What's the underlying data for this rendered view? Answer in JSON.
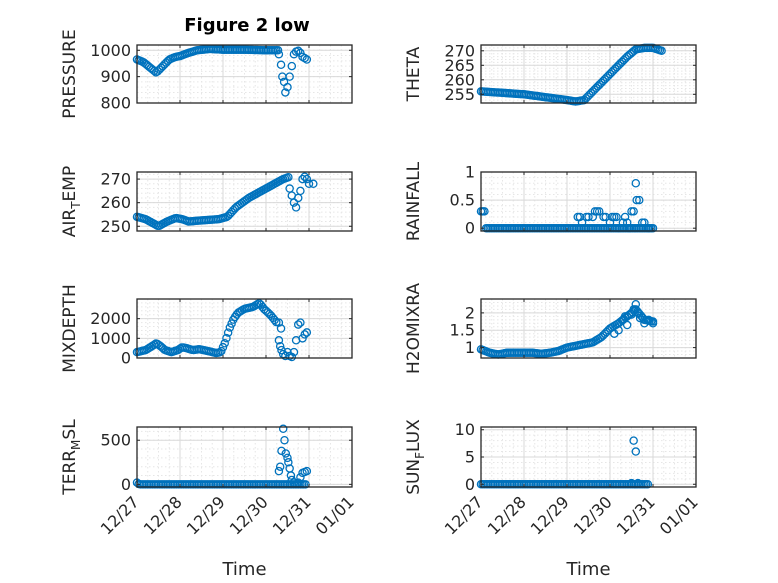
{
  "figure_title": "Figure 2 low",
  "time_ticks": [
    "12/27",
    "12/28",
    "12/29",
    "12/30",
    "12/31",
    "01/01"
  ],
  "colors": {
    "marker": "#0072BD",
    "axis": "#262626",
    "grid": "#d9d9d9"
  },
  "chart_data": [
    {
      "type": "scatter",
      "id": "pressure",
      "ylabel": "PRESSURE",
      "ylabel_sub": "",
      "xlabel": "",
      "xlim": [
        0,
        5
      ],
      "ylim": [
        800,
        1020
      ],
      "yticks": [
        800,
        900,
        1000
      ],
      "ytick_labels": [
        "800",
        "900",
        "1000"
      ],
      "ctrl": [
        [
          0.0,
          965
        ],
        [
          0.15,
          955
        ],
        [
          0.3,
          935
        ],
        [
          0.45,
          915
        ],
        [
          0.6,
          940
        ],
        [
          0.75,
          965
        ],
        [
          0.9,
          975
        ],
        [
          1.0,
          978
        ],
        [
          1.2,
          990
        ],
        [
          1.4,
          1000
        ],
        [
          1.7,
          1005
        ],
        [
          2.0,
          1002
        ],
        [
          2.5,
          1002
        ],
        [
          3.0,
          1000
        ],
        [
          3.3,
          1000
        ]
      ],
      "extra": [
        [
          3.3,
          985
        ],
        [
          3.35,
          945
        ],
        [
          3.38,
          900
        ],
        [
          3.42,
          880
        ],
        [
          3.45,
          840
        ],
        [
          3.5,
          860
        ],
        [
          3.55,
          900
        ],
        [
          3.6,
          940
        ],
        [
          3.65,
          985
        ],
        [
          3.7,
          995
        ],
        [
          3.75,
          998
        ],
        [
          3.8,
          990
        ],
        [
          3.85,
          975
        ],
        [
          3.9,
          970
        ],
        [
          3.95,
          965
        ]
      ]
    },
    {
      "type": "scatter",
      "id": "theta",
      "ylabel": "THETA",
      "ylabel_sub": "",
      "xlabel": "",
      "xlim": [
        0,
        5
      ],
      "ylim": [
        252,
        272
      ],
      "yticks": [
        255,
        260,
        265,
        270
      ],
      "ytick_labels": [
        "255",
        "260",
        "265",
        "270"
      ],
      "ctrl": [
        [
          0.0,
          256
        ],
        [
          0.5,
          255.5
        ],
        [
          1.0,
          255
        ],
        [
          1.5,
          254
        ],
        [
          2.0,
          253
        ],
        [
          2.2,
          252.5
        ],
        [
          2.4,
          253
        ],
        [
          2.6,
          256
        ],
        [
          2.8,
          259
        ],
        [
          3.0,
          262
        ],
        [
          3.2,
          265
        ],
        [
          3.4,
          268
        ],
        [
          3.6,
          270.5
        ],
        [
          3.8,
          271
        ],
        [
          4.0,
          271
        ],
        [
          4.2,
          270
        ]
      ],
      "extra": []
    },
    {
      "type": "scatter",
      "id": "air_temp",
      "ylabel": "AIR",
      "ylabel_sub": "T",
      "ylabel_tail": "EMP",
      "xlabel": "",
      "xlim": [
        0,
        5
      ],
      "ylim": [
        248,
        273
      ],
      "yticks": [
        250,
        260,
        270
      ],
      "ytick_labels": [
        "250",
        "260",
        "270"
      ],
      "ctrl": [
        [
          0.0,
          254
        ],
        [
          0.2,
          253
        ],
        [
          0.35,
          251.5
        ],
        [
          0.5,
          250
        ],
        [
          0.7,
          252
        ],
        [
          0.9,
          253.5
        ],
        [
          1.05,
          253
        ],
        [
          1.2,
          252
        ],
        [
          1.5,
          252.5
        ],
        [
          1.9,
          253
        ],
        [
          2.1,
          254
        ],
        [
          2.3,
          258
        ],
        [
          2.6,
          262
        ],
        [
          2.9,
          265
        ],
        [
          3.2,
          268
        ],
        [
          3.4,
          270
        ],
        [
          3.55,
          271
        ]
      ],
      "extra": [
        [
          3.55,
          266
        ],
        [
          3.6,
          263
        ],
        [
          3.65,
          260
        ],
        [
          3.7,
          258
        ],
        [
          3.75,
          262
        ],
        [
          3.8,
          265
        ],
        [
          3.85,
          270
        ],
        [
          3.9,
          271
        ],
        [
          3.95,
          270
        ],
        [
          4.0,
          268
        ],
        [
          4.1,
          268
        ]
      ]
    },
    {
      "type": "scatter",
      "id": "rainfall",
      "ylabel": "RAINFALL",
      "ylabel_sub": "",
      "xlabel": "",
      "xlim": [
        0,
        5
      ],
      "ylim": [
        -0.05,
        1
      ],
      "yticks": [
        0,
        0.5,
        1
      ],
      "ytick_labels": [
        "0",
        "0.5",
        "1"
      ],
      "ctrl": [
        [
          0.0,
          0.3
        ],
        [
          0.08,
          0.3
        ],
        [
          0.1,
          0
        ],
        [
          3.6,
          0
        ],
        [
          4.0,
          0
        ]
      ],
      "extra": [
        [
          2.25,
          0.2
        ],
        [
          2.3,
          0.2
        ],
        [
          2.35,
          0.1
        ],
        [
          2.45,
          0.2
        ],
        [
          2.5,
          0.2
        ],
        [
          2.6,
          0.2
        ],
        [
          2.65,
          0.3
        ],
        [
          2.7,
          0.3
        ],
        [
          2.75,
          0.3
        ],
        [
          2.85,
          0.2
        ],
        [
          2.9,
          0.2
        ],
        [
          3.0,
          0.1
        ],
        [
          3.05,
          0.2
        ],
        [
          3.1,
          0.2
        ],
        [
          3.15,
          0.2
        ],
        [
          3.3,
          0.1
        ],
        [
          3.35,
          0.2
        ],
        [
          3.4,
          0.1
        ],
        [
          3.5,
          0.3
        ],
        [
          3.55,
          0.3
        ],
        [
          3.6,
          0.8
        ],
        [
          3.62,
          0.5
        ],
        [
          3.68,
          0.5
        ],
        [
          3.75,
          0.1
        ],
        [
          3.8,
          0.1
        ],
        [
          3.9,
          0
        ],
        [
          3.2,
          0
        ],
        [
          3.45,
          0
        ]
      ]
    },
    {
      "type": "scatter",
      "id": "mixdepth",
      "ylabel": "MIXDEPTH",
      "ylabel_sub": "",
      "xlabel": "",
      "xlim": [
        0,
        5
      ],
      "ylim": [
        0,
        3000
      ],
      "yticks": [
        0,
        1000,
        2000
      ],
      "ytick_labels": [
        "0",
        "1000",
        "2000"
      ],
      "ctrl": [
        [
          0.0,
          300
        ],
        [
          0.2,
          400
        ],
        [
          0.35,
          600
        ],
        [
          0.45,
          750
        ],
        [
          0.55,
          600
        ],
        [
          0.65,
          400
        ],
        [
          0.8,
          300
        ],
        [
          0.95,
          400
        ],
        [
          1.05,
          550
        ],
        [
          1.15,
          500
        ],
        [
          1.3,
          400
        ],
        [
          1.45,
          450
        ],
        [
          1.55,
          400
        ],
        [
          1.65,
          350
        ],
        [
          1.75,
          300
        ],
        [
          1.85,
          250
        ],
        [
          1.95,
          300
        ],
        [
          2.05,
          800
        ],
        [
          2.15,
          1500
        ],
        [
          2.25,
          2000
        ],
        [
          2.35,
          2300
        ],
        [
          2.5,
          2500
        ],
        [
          2.7,
          2600
        ],
        [
          2.85,
          2800
        ],
        [
          2.95,
          2500
        ],
        [
          3.1,
          2200
        ],
        [
          3.25,
          1800
        ]
      ],
      "extra": [
        [
          3.3,
          900
        ],
        [
          3.33,
          600
        ],
        [
          3.36,
          400
        ],
        [
          3.4,
          200
        ],
        [
          3.45,
          100
        ],
        [
          3.5,
          300
        ],
        [
          3.55,
          100
        ],
        [
          3.6,
          50
        ],
        [
          3.65,
          300
        ],
        [
          3.3,
          1800
        ],
        [
          3.35,
          1500
        ],
        [
          3.7,
          900
        ],
        [
          3.75,
          1700
        ],
        [
          3.8,
          1800
        ],
        [
          3.85,
          1000
        ],
        [
          3.9,
          1200
        ],
        [
          3.95,
          1300
        ]
      ]
    },
    {
      "type": "scatter",
      "id": "h2omixra",
      "ylabel": "H2OMIXRA",
      "ylabel_sub": "",
      "xlabel": "",
      "xlim": [
        0,
        5
      ],
      "ylim": [
        0.7,
        2.4
      ],
      "yticks": [
        1,
        1.5,
        2
      ],
      "ytick_labels": [
        "1",
        "1.5",
        "2"
      ],
      "ctrl": [
        [
          0.0,
          0.95
        ],
        [
          0.2,
          0.85
        ],
        [
          0.4,
          0.8
        ],
        [
          0.6,
          0.85
        ],
        [
          0.8,
          0.85
        ],
        [
          1.0,
          0.85
        ],
        [
          1.2,
          0.85
        ],
        [
          1.4,
          0.82
        ],
        [
          1.6,
          0.85
        ],
        [
          1.8,
          0.9
        ],
        [
          2.0,
          1.0
        ],
        [
          2.2,
          1.05
        ],
        [
          2.4,
          1.1
        ],
        [
          2.6,
          1.15
        ],
        [
          2.8,
          1.3
        ],
        [
          3.0,
          1.55
        ],
        [
          3.2,
          1.7
        ],
        [
          3.4,
          1.9
        ],
        [
          3.6,
          2.1
        ],
        [
          3.8,
          1.8
        ],
        [
          4.0,
          1.75
        ]
      ],
      "extra": [
        [
          3.1,
          1.4
        ],
        [
          3.2,
          1.5
        ],
        [
          3.3,
          1.8
        ],
        [
          3.35,
          1.9
        ],
        [
          3.4,
          1.65
        ],
        [
          3.5,
          1.95
        ],
        [
          3.55,
          2.1
        ],
        [
          3.6,
          2.25
        ],
        [
          3.65,
          2.0
        ],
        [
          3.7,
          1.85
        ],
        [
          3.8,
          1.7
        ],
        [
          3.9,
          1.8
        ],
        [
          4.0,
          1.7
        ]
      ]
    },
    {
      "type": "scatter",
      "id": "terr_msl",
      "ylabel": "TERR",
      "ylabel_sub": "M",
      "ylabel_tail": "SL",
      "xlabel": "Time",
      "xlim": [
        0,
        5
      ],
      "ylim": [
        -30,
        650
      ],
      "yticks": [
        0,
        500
      ],
      "ytick_labels": [
        "0",
        "500"
      ],
      "ctrl": [
        [
          0.0,
          20
        ],
        [
          0.05,
          0
        ],
        [
          3.35,
          0
        ],
        [
          3.95,
          0
        ]
      ],
      "extra": [
        [
          3.3,
          150
        ],
        [
          3.33,
          200
        ],
        [
          3.36,
          380
        ],
        [
          3.4,
          630
        ],
        [
          3.43,
          500
        ],
        [
          3.46,
          350
        ],
        [
          3.5,
          300
        ],
        [
          3.52,
          250
        ],
        [
          3.55,
          180
        ],
        [
          3.58,
          100
        ],
        [
          3.6,
          50
        ],
        [
          3.65,
          20
        ],
        [
          3.75,
          20
        ],
        [
          3.8,
          80
        ],
        [
          3.85,
          130
        ],
        [
          3.9,
          140
        ],
        [
          3.95,
          150
        ]
      ]
    },
    {
      "type": "scatter",
      "id": "sun_flux",
      "ylabel": "SUN",
      "ylabel_sub": "F",
      "ylabel_tail": "LUX",
      "xlabel": "Time",
      "xlim": [
        0,
        5
      ],
      "ylim": [
        -0.5,
        10.5
      ],
      "yticks": [
        0,
        5,
        10
      ],
      "ytick_labels": [
        "0",
        "5",
        "10"
      ],
      "ctrl": [
        [
          0.0,
          0
        ],
        [
          3.9,
          0
        ]
      ],
      "extra": [
        [
          3.55,
          8
        ],
        [
          3.6,
          6
        ],
        [
          3.5,
          0.2
        ],
        [
          3.65,
          0.2
        ]
      ]
    }
  ]
}
